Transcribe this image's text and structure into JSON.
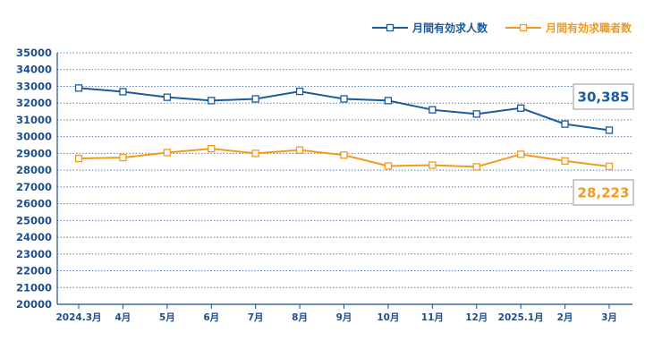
{
  "chart_data": {
    "type": "line",
    "categories": [
      "2024.3月",
      "4月",
      "5月",
      "6月",
      "7月",
      "8月",
      "9月",
      "10月",
      "11月",
      "12月",
      "2025.1月",
      "2月",
      "3月"
    ],
    "series": [
      {
        "name": "月間有効求人数",
        "color": "#1a5a9e",
        "values": [
          32900,
          32680,
          32350,
          32150,
          32250,
          32700,
          32250,
          32150,
          31600,
          31350,
          31700,
          30750,
          30385
        ],
        "last_label": "30,385"
      },
      {
        "name": "月間有効求職者数",
        "color": "#f39a1e",
        "values": [
          28700,
          28750,
          29050,
          29280,
          29000,
          29200,
          28900,
          28250,
          28300,
          28200,
          28950,
          28550,
          28223
        ],
        "last_label": "28,223"
      }
    ],
    "yticks": [
      20000,
      21000,
      22000,
      23000,
      24000,
      25000,
      26000,
      27000,
      28000,
      29000,
      30000,
      31000,
      32000,
      33000,
      34000,
      35000
    ],
    "ylim": [
      20000,
      35000
    ],
    "grid": true,
    "legend_position": "top-right"
  }
}
